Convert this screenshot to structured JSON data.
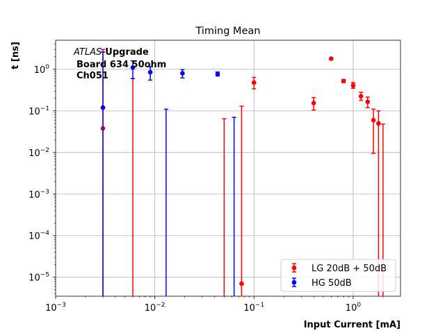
{
  "chart_data": {
    "type": "scatter",
    "title": "Timing Mean",
    "xlabel": "Input Current [mA]",
    "ylabel": "t [ns]",
    "xscale": "log",
    "yscale": "log",
    "xlim": [
      0.001,
      3.0
    ],
    "ylim": [
      3.5e-06,
      5.0
    ],
    "grid": true,
    "legend_position": "lower-right",
    "x_ticks": [
      {
        "value": 0.001,
        "base": "10",
        "exp": "−3"
      },
      {
        "value": 0.01,
        "base": "10",
        "exp": "−2"
      },
      {
        "value": 0.1,
        "base": "10",
        "exp": "−1"
      },
      {
        "value": 1,
        "base": "10",
        "exp": "0"
      }
    ],
    "y_ticks": [
      {
        "value": 1e-05,
        "base": "10",
        "exp": "−5"
      },
      {
        "value": 0.0001,
        "base": "10",
        "exp": "−4"
      },
      {
        "value": 0.001,
        "base": "10",
        "exp": "−3"
      },
      {
        "value": 0.01,
        "base": "10",
        "exp": "−2"
      },
      {
        "value": 0.1,
        "base": "10",
        "exp": "−1"
      },
      {
        "value": 1,
        "base": "10",
        "exp": "0"
      }
    ],
    "annotation": {
      "atlas": "ATLAS",
      "upgrade": "Upgrade",
      "line2": "Board 634 50ohm",
      "line3": "Ch051"
    },
    "series": [
      {
        "name": "LG 20dB + 50dB",
        "color": "#ff0000",
        "points": [
          {
            "x": 0.003,
            "y": 0.038,
            "lo": 3.5e-06,
            "hi": 3.0
          },
          {
            "x": 0.006,
            "y": null,
            "lo": 3.5e-06,
            "hi": 0.6
          },
          {
            "x": 0.05,
            "y": null,
            "lo": 3.5e-06,
            "hi": 0.065
          },
          {
            "x": 0.075,
            "y": 7e-06,
            "lo": 3.5e-06,
            "hi": 0.13
          },
          {
            "x": 0.1,
            "y": 0.48,
            "lo": 0.34,
            "hi": 0.64
          },
          {
            "x": 0.4,
            "y": 0.155,
            "lo": 0.105,
            "hi": 0.21
          },
          {
            "x": 0.6,
            "y": 1.8,
            "lo": 1.7,
            "hi": 1.9
          },
          {
            "x": 0.8,
            "y": 0.52,
            "lo": 0.48,
            "hi": 0.57
          },
          {
            "x": 1.0,
            "y": 0.41,
            "lo": 0.35,
            "hi": 0.48
          },
          {
            "x": 1.2,
            "y": 0.225,
            "lo": 0.18,
            "hi": 0.28
          },
          {
            "x": 1.4,
            "y": 0.165,
            "lo": 0.12,
            "hi": 0.215
          },
          {
            "x": 1.6,
            "y": 0.06,
            "lo": 0.0095,
            "hi": 0.11
          },
          {
            "x": 1.8,
            "y": 0.05,
            "lo": 3.5e-06,
            "hi": 0.1
          },
          {
            "x": 2.0,
            "y": null,
            "lo": 3.5e-06,
            "hi": 0.048
          }
        ]
      },
      {
        "name": "HG 50dB",
        "color": "#0000ff",
        "points": [
          {
            "x": 0.003,
            "y": 0.12,
            "lo": 3.5e-06,
            "hi": 2.6
          },
          {
            "x": 0.006,
            "y": 1.1,
            "lo": 0.6,
            "hi": 1.6
          },
          {
            "x": 0.009,
            "y": 0.85,
            "lo": 0.55,
            "hi": 1.15
          },
          {
            "x": 0.013,
            "y": null,
            "lo": 3.5e-06,
            "hi": 0.11
          },
          {
            "x": 0.019,
            "y": 0.8,
            "lo": 0.62,
            "hi": 0.98
          },
          {
            "x": 0.043,
            "y": 0.77,
            "lo": 0.69,
            "hi": 0.86
          },
          {
            "x": 0.063,
            "y": null,
            "lo": 3.5e-06,
            "hi": 0.07
          }
        ]
      }
    ]
  }
}
